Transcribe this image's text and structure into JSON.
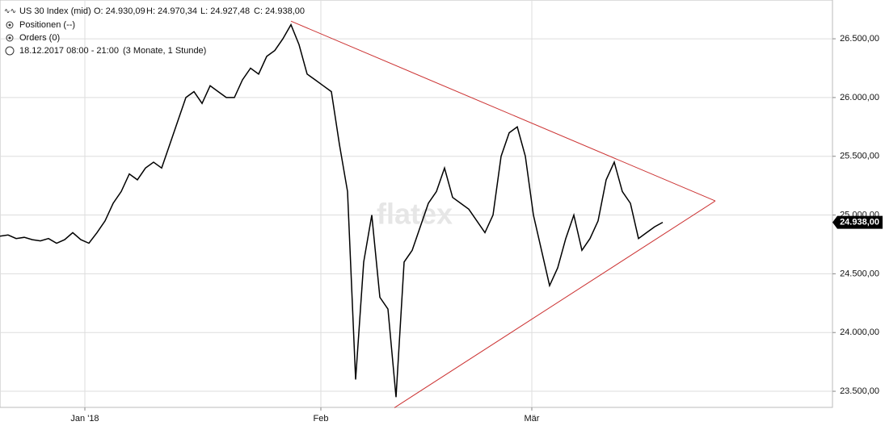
{
  "chart_data": {
    "type": "line",
    "header": {
      "instrument": "US 30 Index (mid)",
      "open": "O: 24.930,09",
      "high": "H: 24.970,34",
      "low": "L: 24.927,48",
      "close": "C: 24.938,00",
      "positions": "Positionen (--)",
      "orders": "Orders (0)",
      "session": "18.12.2017 08:00 - 21:00",
      "period": "(3 Monate, 1 Stunde)"
    },
    "watermark": "flatex",
    "x": [
      0,
      1,
      2,
      3,
      4,
      5,
      6,
      7,
      8,
      9,
      10,
      11,
      12,
      13,
      14,
      15,
      16,
      17,
      18,
      19,
      20,
      21,
      22,
      23,
      24,
      25,
      26,
      27,
      28,
      29,
      30,
      31,
      32,
      33,
      34,
      35,
      36,
      37,
      38,
      39,
      40,
      41,
      42,
      43,
      44,
      45,
      46,
      47,
      48,
      49,
      50,
      51,
      52,
      53,
      54,
      55,
      56,
      57,
      58,
      59,
      60,
      61,
      62,
      63,
      64,
      65,
      66,
      67,
      68,
      69,
      70,
      71,
      72,
      73,
      74,
      75,
      76,
      77,
      78,
      79,
      80,
      81,
      82
    ],
    "series": [
      {
        "name": "US 30 Index (mid)",
        "color": "#000000",
        "values": [
          24820,
          24830,
          24800,
          24810,
          24790,
          24780,
          24800,
          24760,
          24790,
          24850,
          24790,
          24760,
          24850,
          24950,
          25100,
          25200,
          25350,
          25300,
          25400,
          25450,
          25400,
          25600,
          25800,
          26000,
          26050,
          25950,
          26100,
          26050,
          26000,
          26000,
          26150,
          26250,
          26200,
          26350,
          26400,
          26500,
          26620,
          26450,
          26200,
          26150,
          26100,
          26050,
          25600,
          25200,
          23600,
          24600,
          25000,
          24300,
          24200,
          23450,
          24600,
          24700,
          24900,
          25100,
          25200,
          25400,
          25150,
          25100,
          25050,
          24950,
          24850,
          25000,
          25500,
          25700,
          25750,
          25500,
          25000,
          24700,
          24400,
          24550,
          24800,
          25000,
          24700,
          24800,
          24950,
          25300,
          25450,
          25200,
          25100,
          24800,
          24850,
          24900,
          24938
        ]
      }
    ],
    "last_price": 24938,
    "last_price_label": "24.938,00",
    "trendlines": [
      {
        "color": "#cc3333",
        "x": [
          36,
          88.5
        ],
        "y": [
          26650,
          25120
        ]
      },
      {
        "color": "#cc3333",
        "x": [
          48.8,
          88.5
        ],
        "y": [
          23360,
          25120
        ]
      }
    ],
    "xlim": [
      0,
      103
    ],
    "xticks": [
      {
        "value": 10.5,
        "label": "Jan '18"
      },
      {
        "value": 39.7,
        "label": "Feb"
      },
      {
        "value": 65.8,
        "label": "Mär"
      }
    ],
    "ylim": [
      23363,
      26830
    ],
    "yticks": [
      {
        "value": 23500,
        "label": "23.500,00"
      },
      {
        "value": 24000,
        "label": "24.000,00"
      },
      {
        "value": 24500,
        "label": "24.500,00"
      },
      {
        "value": 25000,
        "label": "25.000,00"
      },
      {
        "value": 25500,
        "label": "25.500,00"
      },
      {
        "value": 26000,
        "label": "26.000,00"
      },
      {
        "value": 26500,
        "label": "26.500,00"
      }
    ],
    "grid": true
  }
}
